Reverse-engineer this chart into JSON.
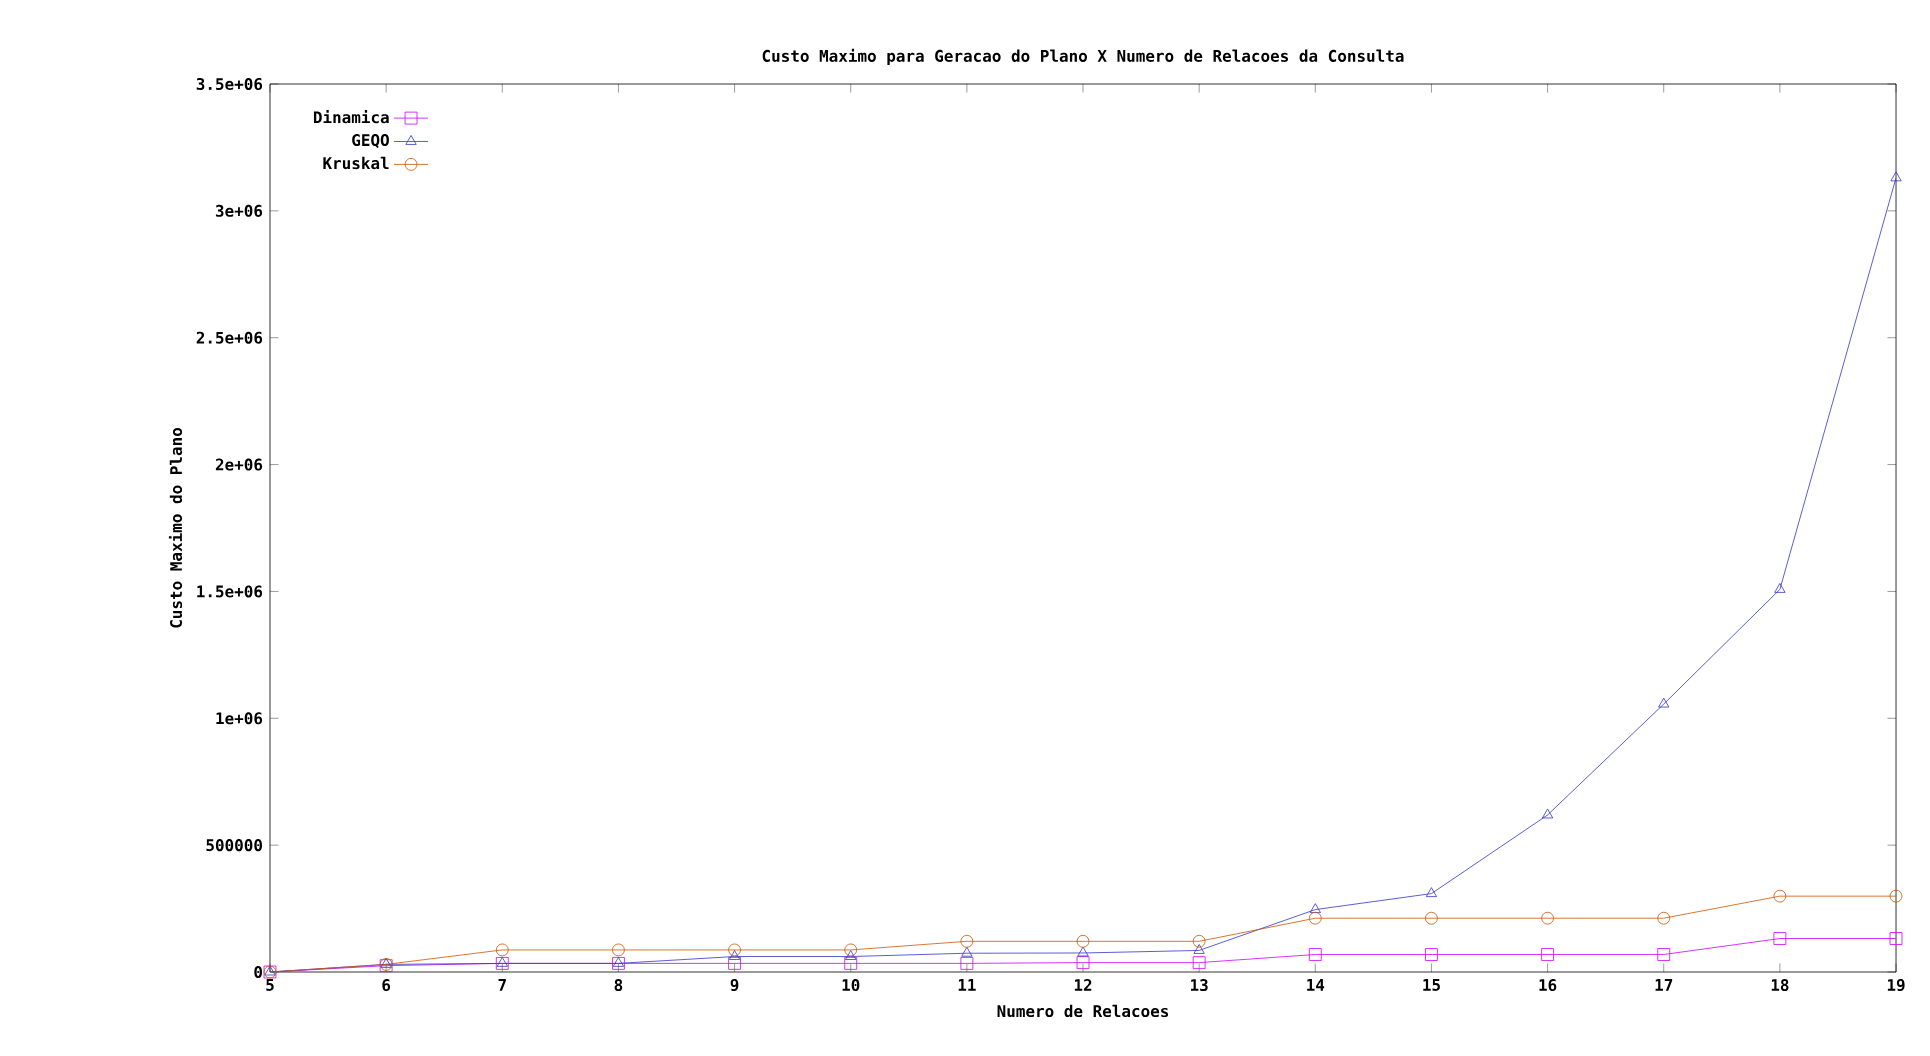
{
  "chart_data": {
    "type": "line",
    "title": "Custo Maximo para Geracao do Plano X Numero de Relacoes da Consulta",
    "xlabel": "Numero de Relacoes",
    "ylabel": "Custo Maximo do Plano",
    "x": [
      5,
      6,
      7,
      8,
      9,
      10,
      11,
      12,
      13,
      14,
      15,
      16,
      17,
      18,
      19
    ],
    "series": [
      {
        "name": "Dinamica",
        "color": "#cc00ff",
        "marker": "square",
        "values": [
          0,
          25000,
          34000,
          34000,
          34000,
          34000,
          34000,
          37000,
          37000,
          69000,
          69000,
          69000,
          69000,
          132000,
          132000
        ]
      },
      {
        "name": "GEQO",
        "color": "#3333cc",
        "marker": "triangle",
        "values": [
          0,
          30000,
          34000,
          34000,
          61000,
          61000,
          74000,
          75000,
          85000,
          246000,
          309000,
          619000,
          1056000,
          1508000,
          3130000
        ]
      },
      {
        "name": "Kruskal",
        "color": "#cc5500",
        "marker": "circle",
        "values": [
          0,
          30000,
          87000,
          87000,
          87000,
          87000,
          121000,
          121000,
          121000,
          212000,
          212000,
          212000,
          212000,
          299000,
          299000
        ]
      }
    ],
    "xlim": [
      5,
      19
    ],
    "xticks": [
      5,
      6,
      7,
      8,
      9,
      10,
      11,
      12,
      13,
      14,
      15,
      16,
      17,
      18,
      19
    ],
    "ylim": [
      0,
      3500000
    ],
    "yticks": [
      0,
      500000,
      {
        "value": 1000000,
        "label": "1e+06"
      },
      {
        "value": 1500000,
        "label": "1.5e+06"
      },
      {
        "value": 2000000,
        "label": "2e+06"
      },
      {
        "value": 2500000,
        "label": "2.5e+06"
      },
      {
        "value": 3000000,
        "label": "3e+06"
      },
      {
        "value": 3500000,
        "label": "3.5e+06"
      }
    ],
    "legend": "top left",
    "grid": false
  }
}
